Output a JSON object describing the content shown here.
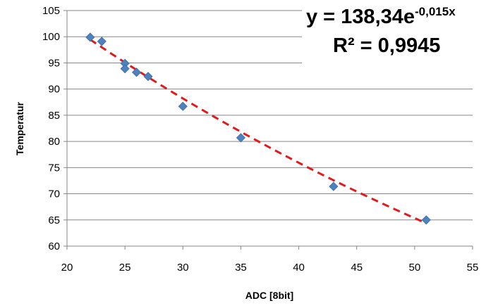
{
  "chart_data": {
    "type": "scatter",
    "xlabel": "ADC [8bit]",
    "ylabel": "Temperatur",
    "xlim": [
      20,
      55
    ],
    "ylim": [
      60,
      105
    ],
    "x_ticks": [
      "20",
      "25",
      "30",
      "35",
      "40",
      "45",
      "50",
      "55"
    ],
    "y_ticks": [
      "60",
      "65",
      "70",
      "75",
      "80",
      "85",
      "90",
      "95",
      "100",
      "105"
    ],
    "grid": "horizontal",
    "legend": "none",
    "series": [
      {
        "points": [
          {
            "x": 22,
            "y": 99.9
          },
          {
            "x": 23,
            "y": 99.1
          },
          {
            "x": 25,
            "y": 94.9
          },
          {
            "x": 25,
            "y": 93.9
          },
          {
            "x": 26,
            "y": 93.2
          },
          {
            "x": 27,
            "y": 92.4
          },
          {
            "x": 30,
            "y": 86.7
          },
          {
            "x": 35,
            "y": 80.7
          },
          {
            "x": 43,
            "y": 71.4
          },
          {
            "x": 51,
            "y": 65.0
          }
        ],
        "marker": "diamond",
        "color": "#4F81BD"
      }
    ],
    "trendline": {
      "type": "exponential",
      "a": 138.34,
      "b": -0.015,
      "x_range": [
        22,
        51
      ],
      "color": "#E31A1C",
      "style": "dashed"
    },
    "equation": {
      "line1_main": "y = 138,34e",
      "line1_sup": "-0,015x",
      "line2": "R² = 0,9945"
    }
  }
}
